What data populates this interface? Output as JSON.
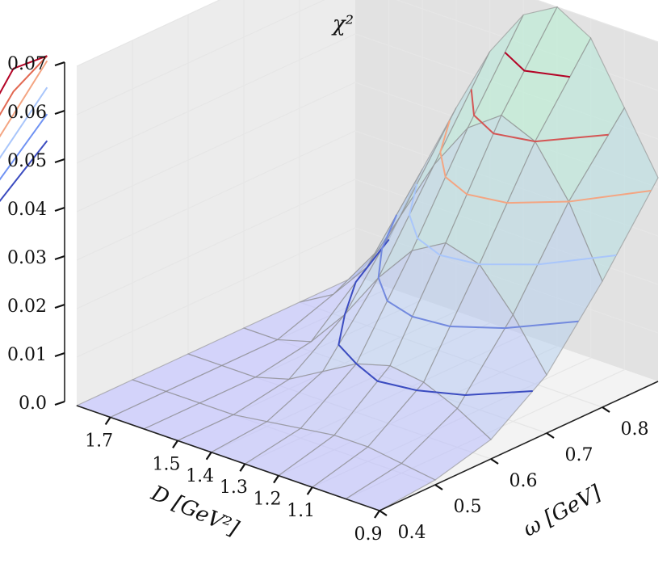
{
  "chart_data": {
    "type": "surface3d",
    "zlabel": "χ²",
    "xlabel": "D [GeV²]",
    "ylabel": "ω [GeV]",
    "D_ticks": [
      "1.7",
      "1.5",
      "1.4",
      "1.3",
      "1.2",
      "1.1",
      "0.9"
    ],
    "omega_ticks": [
      "0.4",
      "0.5",
      "0.6",
      "0.7",
      "0.8"
    ],
    "chi2_ticks": [
      "0.0",
      "0.01",
      "0.02",
      "0.03",
      "0.04",
      "0.05",
      "0.06",
      "0.07"
    ],
    "D_values": [
      1.8,
      1.7,
      1.6,
      1.5,
      1.4,
      1.3,
      1.2,
      1.1,
      1.0,
      0.9
    ],
    "omega_values": [
      0.4,
      0.5,
      0.6,
      0.7,
      0.8,
      0.9
    ],
    "zlim": [
      0.0,
      0.07
    ],
    "surface_z": [
      [
        0.0,
        0.0,
        0.0,
        0.0,
        0.0,
        0.0
      ],
      [
        0.0,
        0.0,
        0.0,
        0.0,
        0.004,
        0.01
      ],
      [
        0.0,
        0.0,
        0.0,
        0.002,
        0.012,
        0.027
      ],
      [
        0.0,
        0.0,
        0.002,
        0.01,
        0.025,
        0.042
      ],
      [
        0.0,
        0.001,
        0.006,
        0.02,
        0.038,
        0.056
      ],
      [
        0.0,
        0.002,
        0.01,
        0.028,
        0.048,
        0.066
      ],
      [
        0.0,
        0.003,
        0.012,
        0.032,
        0.053,
        0.07
      ],
      [
        0.0,
        0.003,
        0.011,
        0.03,
        0.05,
        0.066
      ],
      [
        0.0,
        0.002,
        0.008,
        0.022,
        0.04,
        0.054
      ],
      [
        0.0,
        0.001,
        0.004,
        0.012,
        0.026,
        0.042
      ]
    ],
    "colors": {
      "surface_low": "#b8b8ff",
      "surface_high": "#b4f0d2",
      "contour_low": "#3b4cc0",
      "contour_high": "#b40426"
    }
  }
}
